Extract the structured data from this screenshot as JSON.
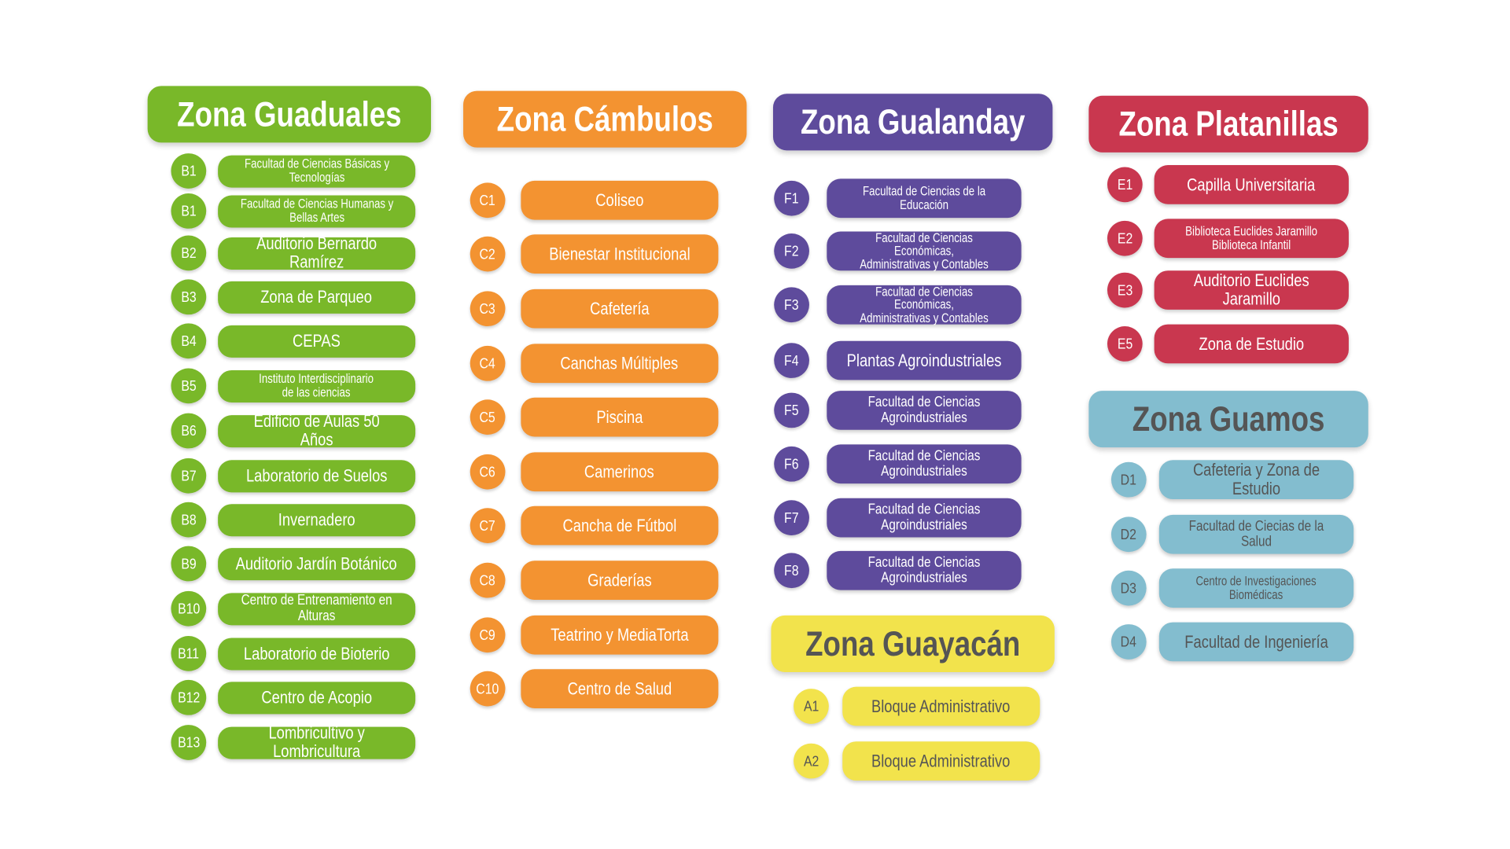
{
  "zones": [
    {
      "title": "Zona Guaduales",
      "color": "#79b829",
      "text_color": "#ffffff",
      "items": [
        {
          "code": "B1",
          "label": "Facultad de Ciencias Básicas y\nTecnologías"
        },
        {
          "code": "B1",
          "label": "Facultad de Ciencias Humanas y\nBellas Artes"
        },
        {
          "code": "B2",
          "label": "Auditorio Bernardo Ramírez"
        },
        {
          "code": "B3",
          "label": "Zona de Parqueo"
        },
        {
          "code": "B4",
          "label": "CEPAS"
        },
        {
          "code": "B5",
          "label": "Instituto Interdisciplinario\nde las ciencias"
        },
        {
          "code": "B6",
          "label": "Edificio de Aulas 50 Años"
        },
        {
          "code": "B7",
          "label": "Laboratorio de Suelos"
        },
        {
          "code": "B8",
          "label": "Invernadero"
        },
        {
          "code": "B9",
          "label": "Auditorio Jardín Botánico"
        },
        {
          "code": "B10",
          "label": "Centro de Entrenamiento en Alturas"
        },
        {
          "code": "B11",
          "label": "Laboratorio de Bioterio"
        },
        {
          "code": "B12",
          "label": "Centro de Acopio"
        },
        {
          "code": "B13",
          "label": "Lombricultivo y Lombricultura"
        }
      ]
    },
    {
      "title": "Zona Cámbulos",
      "color": "#f39331",
      "text_color": "#ffffff",
      "items": [
        {
          "code": "C1",
          "label": "Coliseo"
        },
        {
          "code": "C2",
          "label": "Bienestar Institucional"
        },
        {
          "code": "C3",
          "label": "Cafetería"
        },
        {
          "code": "C4",
          "label": "Canchas Múltiples"
        },
        {
          "code": "C5",
          "label": "Piscina"
        },
        {
          "code": "C6",
          "label": "Camerinos"
        },
        {
          "code": "C7",
          "label": "Cancha de Fútbol"
        },
        {
          "code": "C8",
          "label": "Graderías"
        },
        {
          "code": "C9",
          "label": "Teatrino y MediaTorta"
        },
        {
          "code": "C10",
          "label": "Centro de Salud"
        }
      ]
    },
    {
      "title": "Zona Gualanday",
      "color": "#5e4b9c",
      "text_color": "#ffffff",
      "items": [
        {
          "code": "F1",
          "label": "Facultad de Ciencias de la\nEducación"
        },
        {
          "code": "F2",
          "label": "Facultad de Ciencias Económicas,\nAdministrativas y Contables"
        },
        {
          "code": "F3",
          "label": "Facultad de Ciencias Económicas,\nAdministrativas y Contables"
        },
        {
          "code": "F4",
          "label": "Plantas Agroindustriales"
        },
        {
          "code": "F5",
          "label": "Facultad de Ciencias Agroindustriales"
        },
        {
          "code": "F6",
          "label": "Facultad de Ciencias Agroindustriales"
        },
        {
          "code": "F7",
          "label": "Facultad de Ciencias Agroindustriales"
        },
        {
          "code": "F8",
          "label": "Facultad de Ciencias Agroindustriales"
        }
      ]
    },
    {
      "title": "Zona Guayacán",
      "color": "#f2e34c",
      "text_color": "#555555",
      "items": [
        {
          "code": "A1",
          "label": "Bloque Administrativo"
        },
        {
          "code": "A2",
          "label": "Bloque Administrativo"
        }
      ]
    },
    {
      "title": "Zona Platanillas",
      "color": "#c9374f",
      "text_color": "#ffffff",
      "items": [
        {
          "code": "E1",
          "label": "Capilla Universitaria"
        },
        {
          "code": "E2",
          "label": "Biblioteca Euclides Jaramillo\nBiblioteca Infantil"
        },
        {
          "code": "E3",
          "label": "Auditorio Euclides Jaramillo"
        },
        {
          "code": "E5",
          "label": "Zona de Estudio"
        }
      ]
    },
    {
      "title": "Zona Guamos",
      "color": "#83bdcf",
      "text_color": "#555555",
      "items": [
        {
          "code": "D1",
          "label": "Cafeteria y Zona de Estudio"
        },
        {
          "code": "D2",
          "label": "Facultad de Ciecias de la Salud"
        },
        {
          "code": "D3",
          "label": "Centro de Investigaciones\nBiomédicas"
        },
        {
          "code": "D4",
          "label": "Facultad de Ingeniería"
        }
      ]
    }
  ]
}
